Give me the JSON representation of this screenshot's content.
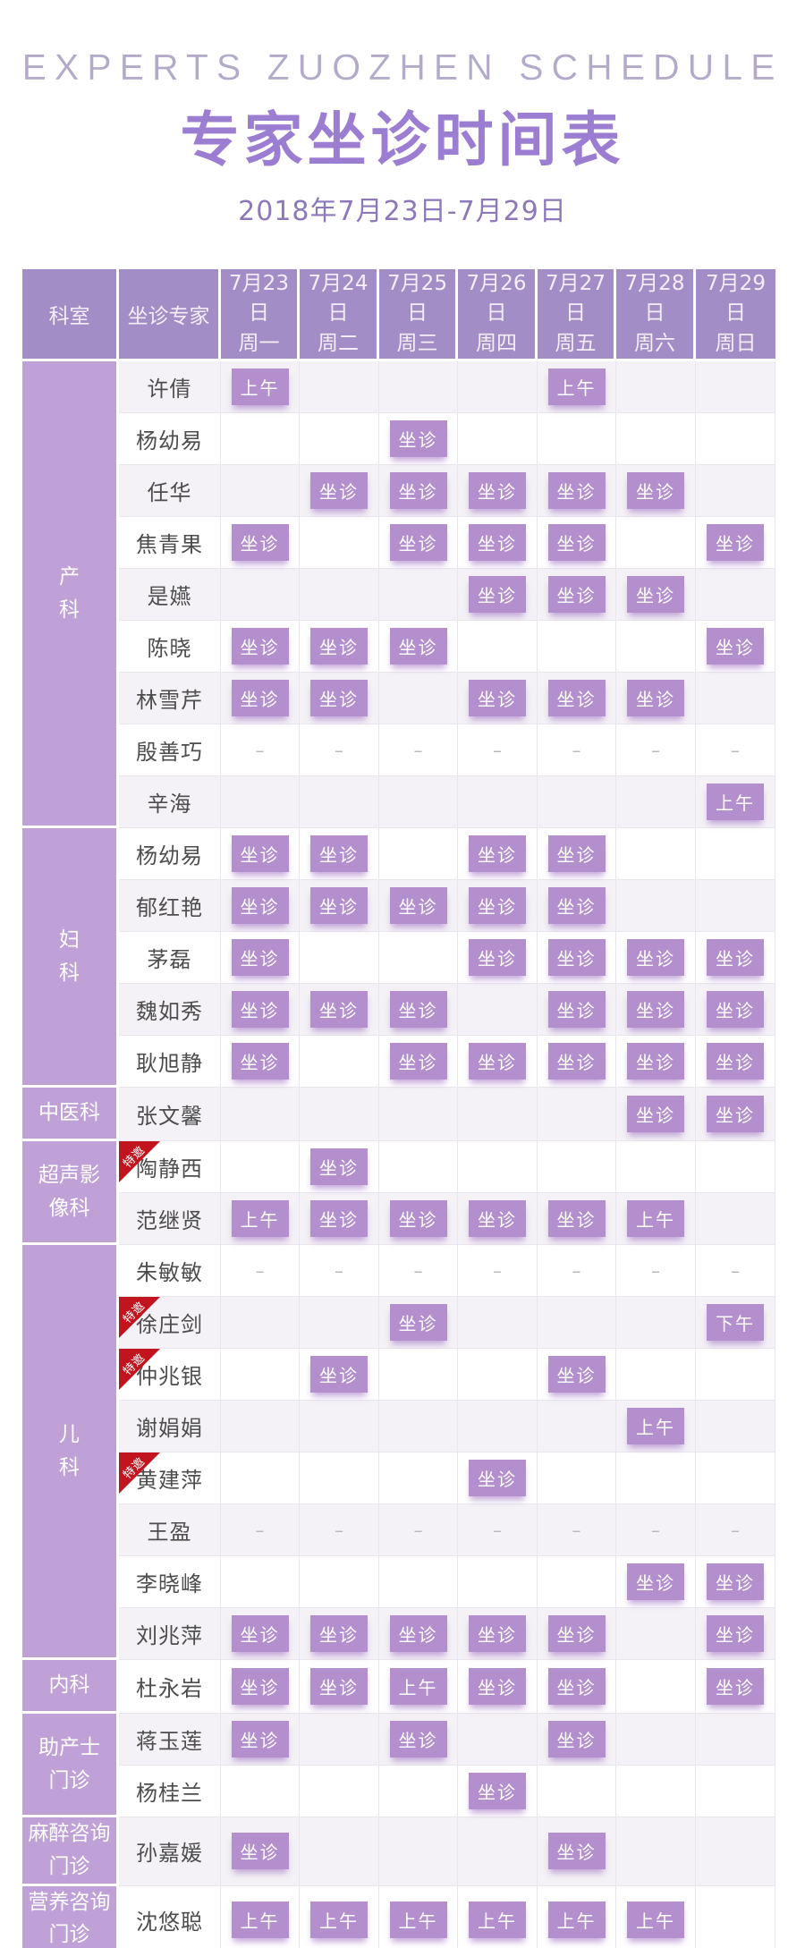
{
  "page": {
    "en_title": "EXPERTS ZUOZHEN SCHEDULE",
    "cn_title": "专家坐诊时间表",
    "date_range": "2018年7月23日-7月29日"
  },
  "colors": {
    "header_purple": "#a28dc7",
    "department_purple": "#c0a1d7",
    "badge_purple": "#b48fce",
    "title_purple": "#9b7ed2",
    "special_ribbon_red": "#c2141e",
    "row_alt_gray": "#f4f2f6"
  },
  "table": {
    "corner_headers": [
      "科室",
      "坐诊专家"
    ],
    "special_badge_label": "特邀",
    "day_headers": [
      {
        "date": "7月23日",
        "weekday": "周一"
      },
      {
        "date": "7月24日",
        "weekday": "周二"
      },
      {
        "date": "7月25日",
        "weekday": "周三"
      },
      {
        "date": "7月26日",
        "weekday": "周四"
      },
      {
        "date": "7月27日",
        "weekday": "周五"
      },
      {
        "date": "7月28日",
        "weekday": "周六"
      },
      {
        "date": "7月29日",
        "weekday": "周日"
      }
    ],
    "departments": [
      {
        "name": "产科",
        "name_lines": [
          "产",
          "科"
        ],
        "experts": [
          {
            "name": "许倩",
            "special": false,
            "schedule": [
              "上午",
              "",
              "",
              "",
              "上午",
              "",
              ""
            ]
          },
          {
            "name": "杨幼易",
            "special": false,
            "schedule": [
              "",
              "",
              "坐诊",
              "",
              "",
              "",
              ""
            ]
          },
          {
            "name": "任华",
            "special": false,
            "schedule": [
              "",
              "坐诊",
              "坐诊",
              "坐诊",
              "坐诊",
              "坐诊",
              ""
            ]
          },
          {
            "name": "焦青果",
            "special": false,
            "schedule": [
              "坐诊",
              "",
              "坐诊",
              "坐诊",
              "坐诊",
              "",
              "坐诊"
            ]
          },
          {
            "name": "是嬿",
            "special": false,
            "schedule": [
              "",
              "",
              "",
              "坐诊",
              "坐诊",
              "坐诊",
              ""
            ]
          },
          {
            "name": "陈晓",
            "special": false,
            "schedule": [
              "坐诊",
              "坐诊",
              "坐诊",
              "",
              "",
              "",
              "坐诊"
            ]
          },
          {
            "name": "林雪芹",
            "special": false,
            "schedule": [
              "坐诊",
              "坐诊",
              "",
              "坐诊",
              "坐诊",
              "坐诊",
              ""
            ]
          },
          {
            "name": "殷善巧",
            "special": false,
            "schedule": [
              "–",
              "–",
              "–",
              "–",
              "–",
              "–",
              "–"
            ]
          },
          {
            "name": "辛海",
            "special": false,
            "schedule": [
              "",
              "",
              "",
              "",
              "",
              "",
              "上午"
            ]
          }
        ]
      },
      {
        "name": "妇科",
        "name_lines": [
          "妇",
          "科"
        ],
        "experts": [
          {
            "name": "杨幼易",
            "special": false,
            "schedule": [
              "坐诊",
              "坐诊",
              "",
              "坐诊",
              "坐诊",
              "",
              ""
            ]
          },
          {
            "name": "郁红艳",
            "special": false,
            "schedule": [
              "坐诊",
              "坐诊",
              "坐诊",
              "坐诊",
              "坐诊",
              "",
              ""
            ]
          },
          {
            "name": "茅磊",
            "special": false,
            "schedule": [
              "坐诊",
              "",
              "",
              "坐诊",
              "坐诊",
              "坐诊",
              "坐诊"
            ]
          },
          {
            "name": "魏如秀",
            "special": false,
            "schedule": [
              "坐诊",
              "坐诊",
              "坐诊",
              "",
              "坐诊",
              "坐诊",
              "坐诊"
            ]
          },
          {
            "name": "耿旭静",
            "special": false,
            "schedule": [
              "坐诊",
              "",
              "坐诊",
              "坐诊",
              "坐诊",
              "坐诊",
              "坐诊"
            ]
          }
        ]
      },
      {
        "name": "中医科",
        "name_lines": [
          "中医科"
        ],
        "experts": [
          {
            "name": "张文馨",
            "special": false,
            "schedule": [
              "",
              "",
              "",
              "",
              "",
              "坐诊",
              "坐诊"
            ]
          }
        ]
      },
      {
        "name": "超声影像科",
        "name_lines": [
          "超声影",
          "像科"
        ],
        "experts": [
          {
            "name": "陶静西",
            "special": true,
            "schedule": [
              "",
              "坐诊",
              "",
              "",
              "",
              "",
              ""
            ]
          },
          {
            "name": "范继贤",
            "special": false,
            "schedule": [
              "上午",
              "坐诊",
              "坐诊",
              "坐诊",
              "坐诊",
              "上午",
              ""
            ]
          }
        ]
      },
      {
        "name": "儿科",
        "name_lines": [
          "儿",
          "科"
        ],
        "experts": [
          {
            "name": "朱敏敏",
            "special": false,
            "schedule": [
              "–",
              "–",
              "–",
              "–",
              "–",
              "–",
              "–"
            ]
          },
          {
            "name": "徐庄剑",
            "special": true,
            "schedule": [
              "",
              "",
              "坐诊",
              "",
              "",
              "",
              "下午"
            ]
          },
          {
            "name": "仲兆银",
            "special": true,
            "schedule": [
              "",
              "坐诊",
              "",
              "",
              "坐诊",
              "",
              ""
            ]
          },
          {
            "name": "谢娟娟",
            "special": false,
            "schedule": [
              "",
              "",
              "",
              "",
              "",
              "上午",
              ""
            ]
          },
          {
            "name": "黄建萍",
            "special": true,
            "schedule": [
              "",
              "",
              "",
              "坐诊",
              "",
              "",
              ""
            ]
          },
          {
            "name": "王盈",
            "special": false,
            "schedule": [
              "–",
              "–",
              "–",
              "–",
              "–",
              "–",
              "–"
            ]
          },
          {
            "name": "李晓峰",
            "special": false,
            "schedule": [
              "",
              "",
              "",
              "",
              "",
              "坐诊",
              "坐诊"
            ]
          },
          {
            "name": "刘兆萍",
            "special": false,
            "schedule": [
              "坐诊",
              "坐诊",
              "坐诊",
              "坐诊",
              "坐诊",
              "",
              "坐诊"
            ]
          }
        ]
      },
      {
        "name": "内科",
        "name_lines": [
          "内科"
        ],
        "experts": [
          {
            "name": "杜永岩",
            "special": false,
            "schedule": [
              "坐诊",
              "坐诊",
              "上午",
              "坐诊",
              "坐诊",
              "",
              "坐诊"
            ]
          }
        ]
      },
      {
        "name": "助产士门诊",
        "name_lines": [
          "助产士",
          "门诊"
        ],
        "experts": [
          {
            "name": "蒋玉莲",
            "special": false,
            "schedule": [
              "坐诊",
              "",
              "坐诊",
              "",
              "坐诊",
              "",
              ""
            ]
          },
          {
            "name": "杨桂兰",
            "special": false,
            "schedule": [
              "",
              "",
              "",
              "坐诊",
              "",
              "",
              ""
            ]
          }
        ]
      },
      {
        "name": "麻醉咨询门诊",
        "name_lines": [
          "麻醉咨询",
          "门诊"
        ],
        "experts": [
          {
            "name": "孙嘉媛",
            "special": false,
            "schedule": [
              "坐诊",
              "",
              "",
              "",
              "坐诊",
              "",
              ""
            ]
          }
        ]
      },
      {
        "name": "营养咨询门诊",
        "name_lines": [
          "营养咨询",
          "门诊"
        ],
        "experts": [
          {
            "name": "沈悠聪",
            "special": false,
            "schedule": [
              "上午",
              "上午",
              "上午",
              "上午",
              "上午",
              "上午",
              ""
            ]
          }
        ]
      }
    ]
  }
}
